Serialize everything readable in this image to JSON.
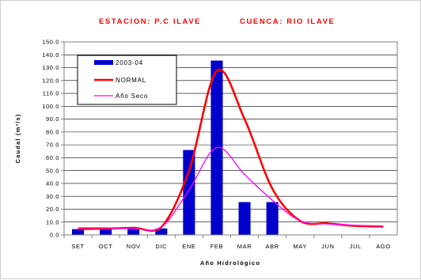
{
  "chart_data": {
    "type": "bar",
    "title_left": "ESTACION: P.C ILAVE",
    "title_right": "CUENCA: RIO ILAVE",
    "xlabel": "Año Hidrológico",
    "ylabel": "Caudal (m³/s)",
    "ylim": [
      0,
      150
    ],
    "ytick_step": 10,
    "yticks": [
      "0.0",
      "10.0",
      "20.0",
      "30.0",
      "40.0",
      "50.0",
      "60.0",
      "70.0",
      "80.0",
      "90.0",
      "100.0",
      "110.0",
      "120.0",
      "130.0",
      "140.0",
      "150.0"
    ],
    "categories": [
      "SET",
      "OCT",
      "NOV",
      "DIC",
      "ENE",
      "FEB",
      "MAR",
      "ABR",
      "MAY",
      "JUN",
      "JUL",
      "AGO"
    ],
    "grid": true,
    "legend_position": "top-left",
    "series": [
      {
        "name": "2003-04",
        "kind": "bar",
        "color": "#0000cc",
        "values": [
          4.5,
          4.2,
          4.6,
          5.0,
          66.0,
          135.5,
          25.5,
          25.5,
          null,
          null,
          null,
          null
        ]
      },
      {
        "name": "NORMAL",
        "kind": "line",
        "color": "#ff0000",
        "values": [
          4.5,
          5.0,
          5.5,
          6.0,
          50.0,
          127.5,
          90.0,
          36.0,
          11.0,
          9.0,
          7.0,
          6.5
        ]
      },
      {
        "name": "Año Seco",
        "kind": "line",
        "color": "#ff00ff",
        "values": [
          5.5,
          5.5,
          5.0,
          6.0,
          35.0,
          68.0,
          47.0,
          27.0,
          11.0,
          8.5,
          7.5,
          7.0
        ]
      }
    ]
  }
}
